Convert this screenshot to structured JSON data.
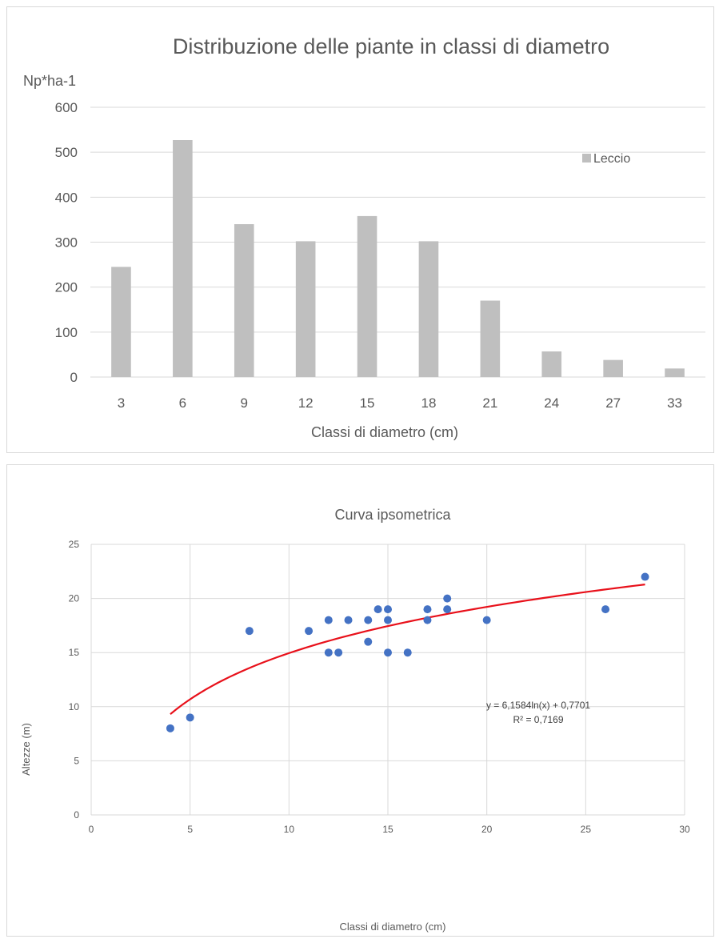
{
  "charts": {
    "bar": {
      "title": "Distribuzione delle piante in classi di diametro",
      "y_unit": "Np*ha-1",
      "xlabel": "Classi di diametro (cm)",
      "legend": "Leccio",
      "bar_color": "#bfbfbf",
      "grid_color": "#d9d9d9"
    },
    "scatter": {
      "title": "Curva ipsometrica",
      "xlabel": "Classi di diametro (cm)",
      "ylabel": "Altezze (m)",
      "equation": "y = 6,1584ln(x) + 0,7701",
      "r2": "R² = 0,7169",
      "point_color": "#4472c4",
      "trend_color": "#e8101a",
      "grid_color": "#d9d9d9"
    }
  },
  "chart_data": [
    {
      "type": "bar",
      "title": "Distribuzione delle piante in classi di diametro",
      "ylabel": "Np*ha-1",
      "xlabel": "Classi di diametro (cm)",
      "categories": [
        "3",
        "6",
        "9",
        "12",
        "15",
        "18",
        "21",
        "24",
        "27",
        "33"
      ],
      "series": [
        {
          "name": "Leccio",
          "values": [
            245,
            527,
            340,
            302,
            358,
            302,
            170,
            57,
            38,
            19
          ]
        }
      ],
      "ylim": [
        0,
        600
      ],
      "yticks": [
        0,
        100,
        200,
        300,
        400,
        500,
        600
      ],
      "grid": true,
      "legend": "top-right"
    },
    {
      "type": "scatter",
      "title": "Curva ipsometrica",
      "xlabel": "Classi di diametro (cm)",
      "ylabel": "Altezze (m)",
      "xlim": [
        0,
        30
      ],
      "ylim": [
        0,
        25
      ],
      "xticks": [
        0,
        5,
        10,
        15,
        20,
        25,
        30
      ],
      "yticks": [
        0,
        5,
        10,
        15,
        20,
        25
      ],
      "grid": true,
      "points": [
        [
          4,
          8
        ],
        [
          5,
          9
        ],
        [
          8,
          17
        ],
        [
          11,
          17
        ],
        [
          12,
          18
        ],
        [
          12,
          15
        ],
        [
          12.5,
          15
        ],
        [
          13,
          18
        ],
        [
          14,
          18
        ],
        [
          14,
          16
        ],
        [
          14.5,
          19
        ],
        [
          15,
          19
        ],
        [
          15,
          18
        ],
        [
          15,
          15
        ],
        [
          16,
          15
        ],
        [
          17,
          19
        ],
        [
          17,
          18
        ],
        [
          18,
          20
        ],
        [
          18,
          19
        ],
        [
          20,
          18
        ],
        [
          26,
          19
        ],
        [
          28,
          22
        ]
      ],
      "trendline": {
        "type": "logarithmic",
        "a": 6.1584,
        "b": 0.7701,
        "x_range": [
          4,
          28
        ],
        "equation": "y = 6,1584ln(x) + 0,7701",
        "r2": "R² = 0,7169"
      }
    }
  ]
}
